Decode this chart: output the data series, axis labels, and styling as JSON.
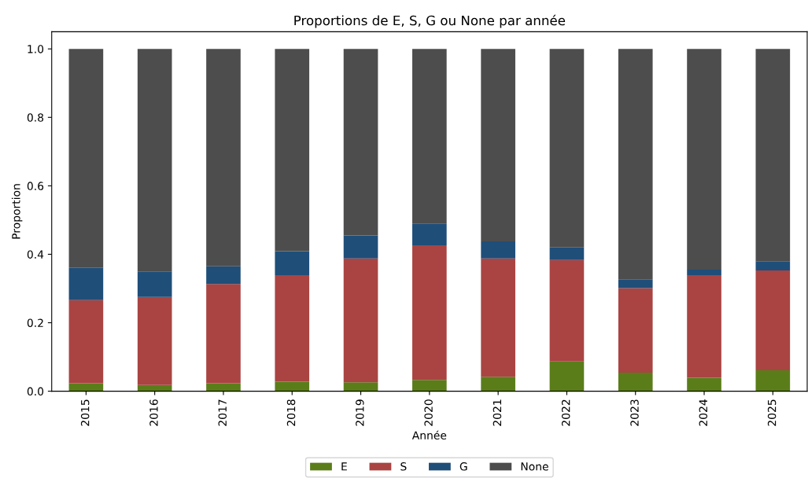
{
  "chart_data": {
    "type": "bar",
    "stacked": true,
    "title": "Proportions de E, S, G ou None par année",
    "xlabel": "Année",
    "ylabel": "Proportion",
    "categories": [
      "2015",
      "2016",
      "2017",
      "2018",
      "2019",
      "2020",
      "2021",
      "2022",
      "2023",
      "2024",
      "2025"
    ],
    "series": [
      {
        "name": "E",
        "color": "#5a7d1a",
        "values": [
          0.023,
          0.018,
          0.023,
          0.028,
          0.026,
          0.033,
          0.042,
          0.087,
          0.054,
          0.039,
          0.061
        ]
      },
      {
        "name": "S",
        "color": "#a94442",
        "values": [
          0.243,
          0.257,
          0.29,
          0.311,
          0.362,
          0.393,
          0.346,
          0.296,
          0.247,
          0.3,
          0.292
        ]
      },
      {
        "name": "G",
        "color": "#1f4e79",
        "values": [
          0.094,
          0.075,
          0.052,
          0.07,
          0.067,
          0.064,
          0.05,
          0.037,
          0.026,
          0.016,
          0.027
        ]
      },
      {
        "name": "None",
        "color": "#4d4d4d",
        "values": [
          0.64,
          0.65,
          0.635,
          0.591,
          0.545,
          0.51,
          0.562,
          0.58,
          0.673,
          0.645,
          0.62
        ]
      }
    ],
    "ylim": [
      0,
      1.05
    ],
    "yticks": [
      {
        "value": 0,
        "label": "0.0"
      },
      {
        "value": 0.2,
        "label": "0.2"
      },
      {
        "value": 0.4,
        "label": "0.4"
      },
      {
        "value": 0.6,
        "label": "0.6"
      },
      {
        "value": 0.8,
        "label": "0.8"
      },
      {
        "value": 1.0,
        "label": "1.0"
      }
    ],
    "grid": false,
    "legend": "bottom"
  }
}
